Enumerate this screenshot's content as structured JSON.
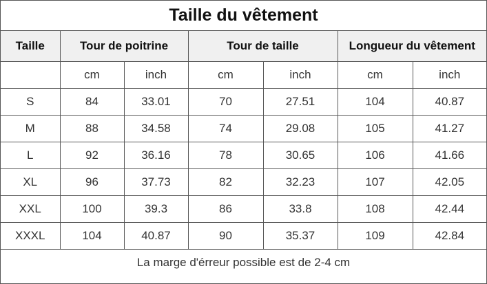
{
  "chart_data": {
    "type": "table",
    "title": "Taille du vêtement",
    "columns": {
      "size": "Taille",
      "chest": "Tour de poitrine",
      "waist": "Tour de taille",
      "length": "Longueur du vêtement"
    },
    "units": [
      "cm",
      "inch",
      "cm",
      "inch",
      "cm",
      "inch"
    ],
    "rows": [
      {
        "size": "S",
        "values": [
          "84",
          "33.01",
          "70",
          "27.51",
          "104",
          "40.87"
        ]
      },
      {
        "size": "M",
        "values": [
          "88",
          "34.58",
          "74",
          "29.08",
          "105",
          "41.27"
        ]
      },
      {
        "size": "L",
        "values": [
          "92",
          "36.16",
          "78",
          "30.65",
          "106",
          "41.66"
        ]
      },
      {
        "size": "XL",
        "values": [
          "96",
          "37.73",
          "82",
          "32.23",
          "107",
          "42.05"
        ]
      },
      {
        "size": "XXL",
        "values": [
          "100",
          "39.3",
          "86",
          "33.8",
          "108",
          "42.44"
        ]
      },
      {
        "size": "XXXL",
        "values": [
          "104",
          "40.87",
          "90",
          "35.37",
          "109",
          "42.84"
        ]
      }
    ],
    "note": "La marge d'érreur possible est de 2-4 cm"
  },
  "colors": {
    "border": "#555555",
    "header_background": "#f0f0f0",
    "text": "#222222"
  }
}
